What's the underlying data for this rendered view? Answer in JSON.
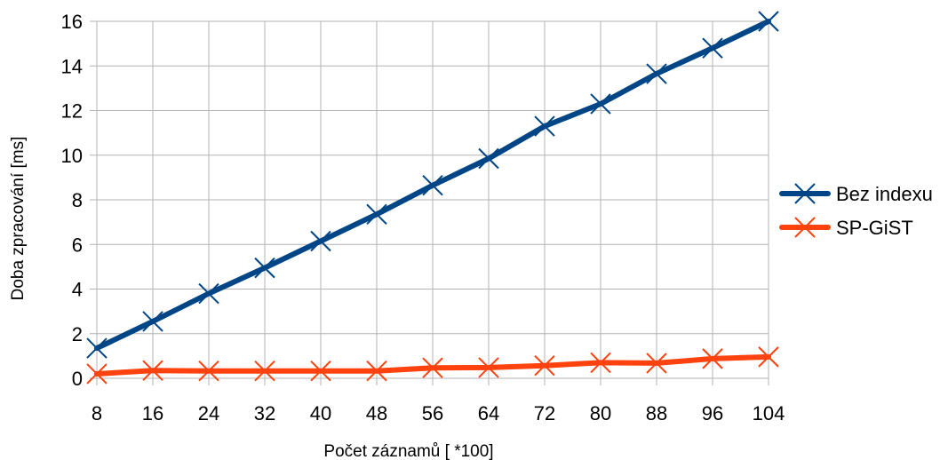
{
  "chart_data": {
    "type": "line",
    "title": "",
    "xlabel": "Počet záznamů [ *100]",
    "ylabel": "Doba zpracování [ms]",
    "categories": [
      "8",
      "16",
      "24",
      "32",
      "40",
      "48",
      "56",
      "64",
      "72",
      "80",
      "88",
      "96",
      "104"
    ],
    "yticks": [
      "0",
      "2",
      "4",
      "6",
      "8",
      "10",
      "12",
      "14",
      "16"
    ],
    "ylim": [
      0,
      16
    ],
    "grid": true,
    "legend_position": "right",
    "series": [
      {
        "name": "Bez indexu",
        "color": "#004586",
        "marker": "x",
        "values": [
          1.35,
          2.55,
          3.8,
          4.95,
          6.15,
          7.35,
          8.65,
          9.85,
          11.3,
          12.3,
          13.65,
          14.8,
          16.0
        ]
      },
      {
        "name": "SP-GiST",
        "color": "#ff420e",
        "marker": "x",
        "values": [
          0.2,
          0.35,
          0.33,
          0.33,
          0.33,
          0.33,
          0.47,
          0.48,
          0.57,
          0.7,
          0.68,
          0.88,
          0.96
        ]
      }
    ]
  }
}
